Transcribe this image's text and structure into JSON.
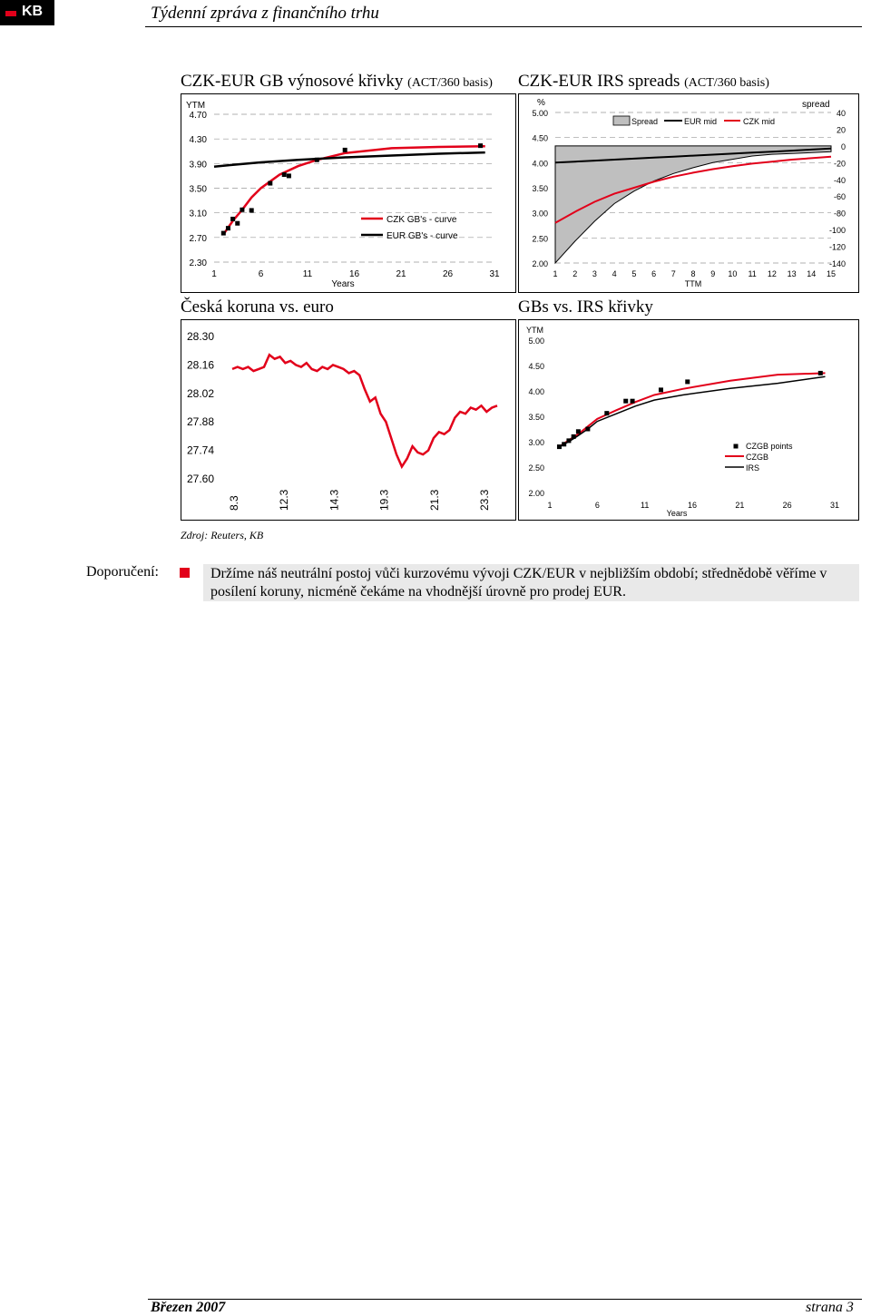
{
  "header": {
    "logo_text": "KB",
    "title": "Týdenní zpráva z finančního trhu"
  },
  "sections": {
    "yield_curves": {
      "title": "CZK-EUR GB výnosové křivky",
      "subtitle": "(ACT/360 basis)"
    },
    "irs_spreads": {
      "title": "CZK-EUR IRS spreads",
      "subtitle": "(ACT/360 basis)"
    },
    "czk_eur": {
      "title": "Česká koruna vs. euro"
    },
    "gbs_irs": {
      "title": "GBs vs. IRS křivky"
    }
  },
  "chart_data": [
    {
      "id": "yield_curves",
      "type": "line",
      "ylabel": "YTM",
      "xlabel": "Years",
      "ylim": [
        2.3,
        4.7
      ],
      "yticks": [
        "4.70",
        "4.30",
        "3.90",
        "3.50",
        "3.10",
        "2.70",
        "2.30"
      ],
      "xticks": [
        "1",
        "6",
        "11",
        "16",
        "21",
        "26",
        "31"
      ],
      "xlim": [
        1,
        31
      ],
      "legend": [
        "CZK GB's - curve",
        "EUR GB's - curve"
      ],
      "series": [
        {
          "name": "CZK GB's - curve",
          "color": "#e2001a",
          "x": [
            2,
            3,
            4,
            5,
            6,
            8,
            10,
            12,
            15,
            20,
            25,
            30
          ],
          "y": [
            2.75,
            2.97,
            3.15,
            3.35,
            3.5,
            3.72,
            3.86,
            3.96,
            4.07,
            4.15,
            4.17,
            4.18
          ]
        },
        {
          "name": "EUR GB's - curve",
          "color": "#000000",
          "x": [
            1,
            3,
            6,
            10,
            15,
            20,
            25,
            30
          ],
          "y": [
            3.85,
            3.88,
            3.92,
            3.96,
            4.0,
            4.03,
            4.06,
            4.08
          ]
        }
      ],
      "points": {
        "series": "CZK GB points",
        "x": [
          2,
          2.5,
          3,
          3.5,
          4,
          5,
          7,
          8.5,
          9,
          12,
          15,
          29.5
        ],
        "y": [
          2.77,
          2.85,
          3.0,
          2.93,
          3.15,
          3.14,
          3.58,
          3.72,
          3.7,
          3.96,
          4.12,
          4.19
        ]
      }
    },
    {
      "id": "irs_spreads",
      "type": "line",
      "ylabel": "%",
      "y2label": "spread",
      "xlabel": "TTM",
      "ylim": [
        2.0,
        5.0
      ],
      "y2lim": [
        -140,
        40
      ],
      "yticks": [
        "5.00",
        "4.50",
        "4.00",
        "3.50",
        "3.00",
        "2.50",
        "2.00"
      ],
      "y2ticks": [
        "40",
        "20",
        "0",
        "-20",
        "-40",
        "-60",
        "-80",
        "-100",
        "-120",
        "-140"
      ],
      "xticks": [
        "1",
        "2",
        "3",
        "4",
        "5",
        "6",
        "7",
        "8",
        "9",
        "10",
        "11",
        "12",
        "13",
        "14",
        "15"
      ],
      "xlim": [
        1,
        15
      ],
      "legend": [
        "Spread",
        "EUR mid",
        "CZK mid"
      ],
      "series": [
        {
          "name": "EUR mid",
          "color": "#000000",
          "x": [
            1,
            2,
            3,
            4,
            5,
            6,
            7,
            8,
            9,
            10,
            11,
            12,
            13,
            14,
            15
          ],
          "y": [
            4.0,
            4.02,
            4.04,
            4.06,
            4.08,
            4.1,
            4.12,
            4.14,
            4.16,
            4.18,
            4.2,
            4.22,
            4.24,
            4.26,
            4.28
          ]
        },
        {
          "name": "CZK mid",
          "color": "#e2001a",
          "x": [
            1,
            2,
            3,
            4,
            5,
            6,
            7,
            8,
            9,
            10,
            11,
            12,
            13,
            14,
            15
          ],
          "y": [
            2.8,
            3.02,
            3.22,
            3.38,
            3.5,
            3.62,
            3.72,
            3.8,
            3.87,
            3.93,
            3.98,
            4.02,
            4.06,
            4.09,
            4.12
          ]
        },
        {
          "name": "Spread",
          "color": "#bfbfbf",
          "axis": "right",
          "x": [
            1,
            2,
            3,
            4,
            5,
            6,
            7,
            8,
            9,
            10,
            11,
            12,
            13,
            14,
            15
          ],
          "y": [
            -140,
            -114,
            -90,
            -69,
            -54,
            -42,
            -33,
            -26,
            -20,
            -16,
            -12,
            -10,
            -9,
            -8,
            -7
          ]
        }
      ]
    },
    {
      "id": "czk_eur",
      "type": "line",
      "ylim": [
        27.6,
        28.3
      ],
      "yticks": [
        "28.30",
        "28.16",
        "28.02",
        "27.88",
        "27.74",
        "27.60"
      ],
      "xticks": [
        "8.3",
        "12.3",
        "14.3",
        "19.3",
        "21.3",
        "23.3"
      ],
      "series": [
        {
          "name": "",
          "color": "#e2001a",
          "x": [
            0,
            0.02,
            0.04,
            0.06,
            0.08,
            0.1,
            0.12,
            0.14,
            0.16,
            0.18,
            0.2,
            0.22,
            0.24,
            0.26,
            0.28,
            0.3,
            0.32,
            0.34,
            0.36,
            0.38,
            0.4,
            0.42,
            0.44,
            0.46,
            0.48,
            0.5,
            0.52,
            0.54,
            0.56,
            0.58,
            0.6,
            0.62,
            0.64,
            0.66,
            0.68,
            0.7,
            0.72,
            0.74,
            0.76,
            0.78,
            0.8,
            0.82,
            0.84,
            0.86,
            0.88,
            0.9,
            0.92,
            0.94,
            0.96,
            0.98,
            1.0
          ],
          "y": [
            28.14,
            28.15,
            28.14,
            28.15,
            28.13,
            28.14,
            28.15,
            28.21,
            28.19,
            28.2,
            28.17,
            28.18,
            28.16,
            28.15,
            28.17,
            28.14,
            28.13,
            28.15,
            28.14,
            28.16,
            28.15,
            28.14,
            28.12,
            28.13,
            28.11,
            28.04,
            27.98,
            28.0,
            27.92,
            27.88,
            27.8,
            27.72,
            27.66,
            27.7,
            27.76,
            27.73,
            27.72,
            27.74,
            27.8,
            27.83,
            27.82,
            27.84,
            27.9,
            27.93,
            27.92,
            27.95,
            27.94,
            27.96,
            27.93,
            27.95,
            27.96
          ]
        }
      ]
    },
    {
      "id": "gbs_irs",
      "type": "line",
      "ylabel": "YTM",
      "xlabel": "Years",
      "ylim": [
        2.0,
        5.0
      ],
      "yticks": [
        "5.00",
        "4.50",
        "4.00",
        "3.50",
        "3.00",
        "2.50",
        "2.00"
      ],
      "xticks": [
        "1",
        "6",
        "11",
        "16",
        "21",
        "26",
        "31"
      ],
      "xlim": [
        1,
        31
      ],
      "legend": [
        "CZGB points",
        "CZGB",
        "IRS"
      ],
      "series": [
        {
          "name": "CZGB",
          "color": "#e2001a",
          "x": [
            2,
            3,
            4,
            5,
            6,
            8,
            10,
            12,
            15,
            20,
            25,
            30
          ],
          "y": [
            2.9,
            3.03,
            3.15,
            3.3,
            3.45,
            3.62,
            3.78,
            3.92,
            4.04,
            4.2,
            4.32,
            4.35
          ]
        },
        {
          "name": "IRS",
          "color": "#000000",
          "x": [
            2,
            3,
            4,
            5,
            6,
            8,
            10,
            12,
            15,
            20,
            25,
            30
          ],
          "y": [
            2.9,
            3.0,
            3.12,
            3.25,
            3.4,
            3.55,
            3.7,
            3.82,
            3.92,
            4.05,
            4.15,
            4.28
          ]
        }
      ],
      "points": {
        "series": "CZGB points",
        "x": [
          2,
          2.5,
          3,
          3.5,
          4,
          5,
          7,
          9,
          9.7,
          12.7,
          15.5,
          29.5
        ],
        "y": [
          2.9,
          2.95,
          3.02,
          3.1,
          3.2,
          3.25,
          3.56,
          3.8,
          3.8,
          4.02,
          4.18,
          4.35
        ]
      }
    }
  ],
  "source": "Zdroj: Reuters, KB",
  "recommendation": {
    "label": "Doporučení:",
    "text": "Držíme náš neutrální postoj vůči kurzovému vývoji CZK/EUR v nejbližším období; střednědobě věříme v posílení koruny, nicméně čekáme na vhodnější úrovně pro prodej EUR."
  },
  "footer": {
    "date": "Březen 2007",
    "page": "strana 3"
  }
}
